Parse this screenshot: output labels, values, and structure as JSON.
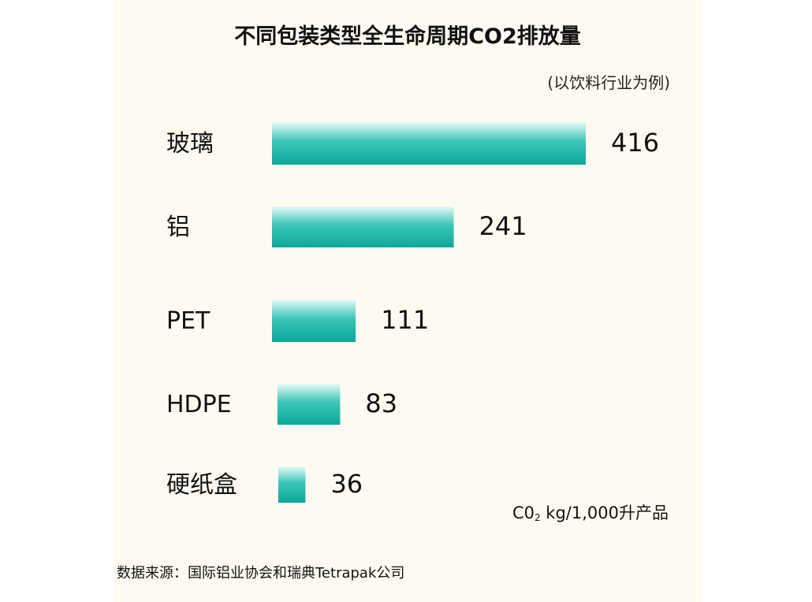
{
  "chart_data": {
    "type": "bar",
    "orientation": "horizontal",
    "title": "不同包装类型全生命周期CO2排放量",
    "subtitle": "(以饮料行业为例)",
    "categories": [
      "玻璃",
      "铝",
      "PET",
      "HDPE",
      "硬纸盒"
    ],
    "values": [
      416,
      241,
      111,
      83,
      36
    ],
    "value_labels": [
      "416",
      "241",
      "111",
      "83",
      "36"
    ],
    "unit_prefix": "C0",
    "unit_sub": "2",
    "unit_suffix": " kg/1,000升产品",
    "source": "数据来源：国际铝业协会和瑞典Tetrapak公司",
    "bar_color_top": "#e6faf6",
    "bar_color_bottom": "#0aa89a",
    "grid": false,
    "legend": "none"
  }
}
